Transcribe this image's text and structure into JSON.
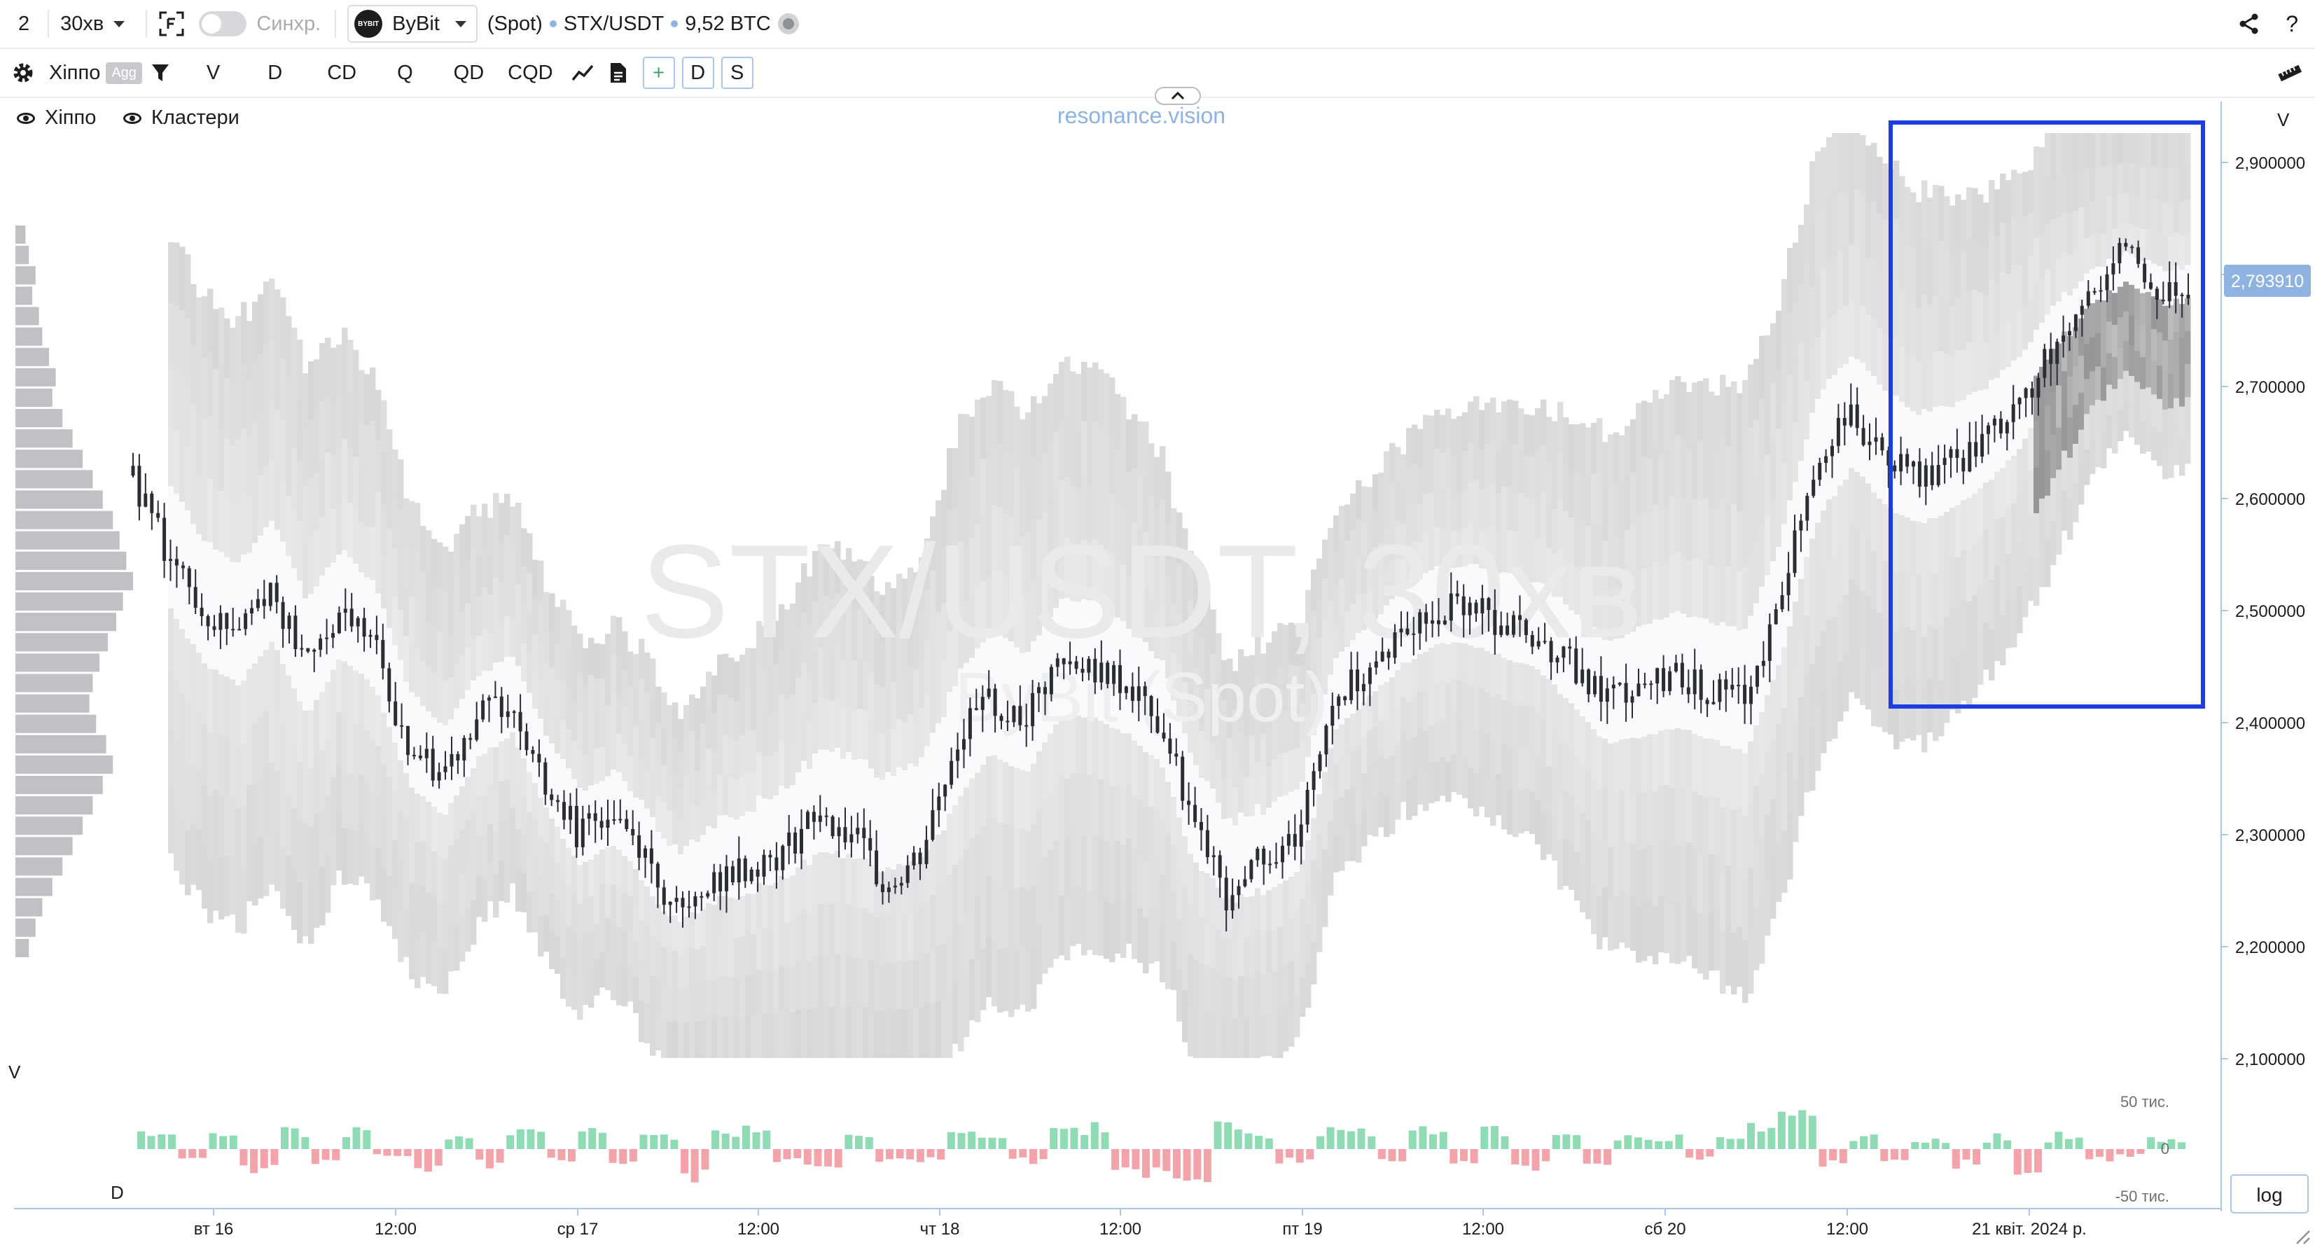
{
  "toolbar": {
    "layout_number": "2",
    "timeframe": "30хв",
    "sync_label": "Синхр.",
    "exchange": "ByBit",
    "exchange_logo_text": "BYBIT",
    "market": "(Spot)",
    "symbol": "STX/USDT",
    "volume": "9,52 BTC",
    "help": "?"
  },
  "toolbar2": {
    "hippo_label": "Хіппо",
    "agg_badge": "Agg",
    "buttons": [
      "V",
      "D",
      "CD",
      "Q",
      "QD",
      "CQD"
    ],
    "box_buttons": [
      "+",
      "D",
      "S"
    ]
  },
  "legend": {
    "hippo": "Хіппо",
    "clusters": "Кластери"
  },
  "watermark": {
    "brand": "resonance.vision",
    "symbol": "STX/USDT, 30хв",
    "exchange": "ByBit (Spot)"
  },
  "price_axis": {
    "label": "V",
    "ticks": [
      "2,900000",
      "2,800000",
      "2,700000",
      "2,600000",
      "2,500000",
      "2,400000",
      "2,300000",
      "2,200000",
      "2,100000"
    ],
    "current_price": "2,793910"
  },
  "volume_panel": {
    "label_v": "V",
    "label_d": "D",
    "ticks": [
      "50 тис.",
      "0",
      "-50 тис."
    ],
    "log_button": "log"
  },
  "time_axis": [
    "вт 16",
    "12:00",
    "ср 17",
    "12:00",
    "чт 18",
    "12:00",
    "пт 19",
    "12:00",
    "сб 20",
    "12:00",
    "21 квіт. 2024 р."
  ],
  "colors": {
    "accent": "#8fb3e0",
    "highlight_box": "#1a3ee0",
    "volume_up": "#8fdcb4",
    "volume_down": "#f5a3aa",
    "price_badge": "#8fb3e0"
  },
  "chart_data": {
    "type": "candlestick",
    "y_range": [
      2.08,
      2.93
    ],
    "price_path": [
      2.62,
      2.55,
      2.5,
      2.48,
      2.52,
      2.45,
      2.5,
      2.47,
      2.38,
      2.35,
      2.4,
      2.42,
      2.35,
      2.3,
      2.32,
      2.28,
      2.22,
      2.26,
      2.27,
      2.28,
      2.32,
      2.3,
      2.25,
      2.28,
      2.38,
      2.42,
      2.4,
      2.45,
      2.45,
      2.43,
      2.4,
      2.3,
      2.24,
      2.28,
      2.3,
      2.42,
      2.45,
      2.48,
      2.5,
      2.5,
      2.49,
      2.48,
      2.45,
      2.42,
      2.43,
      2.44,
      2.43,
      2.42,
      2.5,
      2.62,
      2.68,
      2.64,
      2.62,
      2.63,
      2.65,
      2.68,
      2.73,
      2.78,
      2.82,
      2.79,
      2.79
    ],
    "volume_values": [
      8,
      10,
      6,
      12,
      9,
      7,
      14,
      10,
      6,
      11,
      8,
      15,
      9,
      20,
      12,
      10,
      8,
      14,
      18,
      9,
      7,
      12,
      10,
      6,
      16,
      9,
      8,
      12,
      14,
      10,
      22,
      30,
      20,
      12,
      10,
      8,
      16,
      10,
      12,
      9,
      14,
      10,
      8,
      12,
      9,
      10,
      7,
      8,
      18,
      24,
      12,
      9,
      10,
      8,
      12,
      9,
      14,
      10,
      9,
      8,
      9
    ],
    "delta_values": [
      1,
      -0.5,
      0.7,
      -1,
      0.9,
      -0.6,
      0.8,
      -0.4,
      -1,
      0.6,
      -0.8,
      0.9,
      -0.5,
      1.2,
      -0.7,
      0.6,
      -1.4,
      0.8,
      1.1,
      -0.6,
      -0.9,
      0.7,
      -0.5,
      -0.4,
      1,
      0.7,
      -0.6,
      0.9,
      1.2,
      -0.8,
      -1.5,
      -2,
      1.4,
      0.8,
      -0.6,
      1,
      0.9,
      -0.7,
      0.8,
      -0.5,
      1,
      -0.8,
      0.6,
      -0.7,
      0.5,
      0.6,
      -0.4,
      0.5,
      1.3,
      1.6,
      -0.8,
      0.5,
      -0.6,
      0.4,
      -0.7,
      0.5,
      -1,
      0.6,
      -0.5,
      -0.4,
      0.4
    ],
    "volume_profile": [
      6,
      8,
      12,
      10,
      14,
      16,
      20,
      24,
      22,
      28,
      34,
      40,
      46,
      52,
      58,
      62,
      66,
      70,
      64,
      60,
      55,
      50,
      46,
      44,
      48,
      54,
      58,
      52,
      46,
      40,
      34,
      28,
      22,
      16,
      12,
      8
    ]
  }
}
